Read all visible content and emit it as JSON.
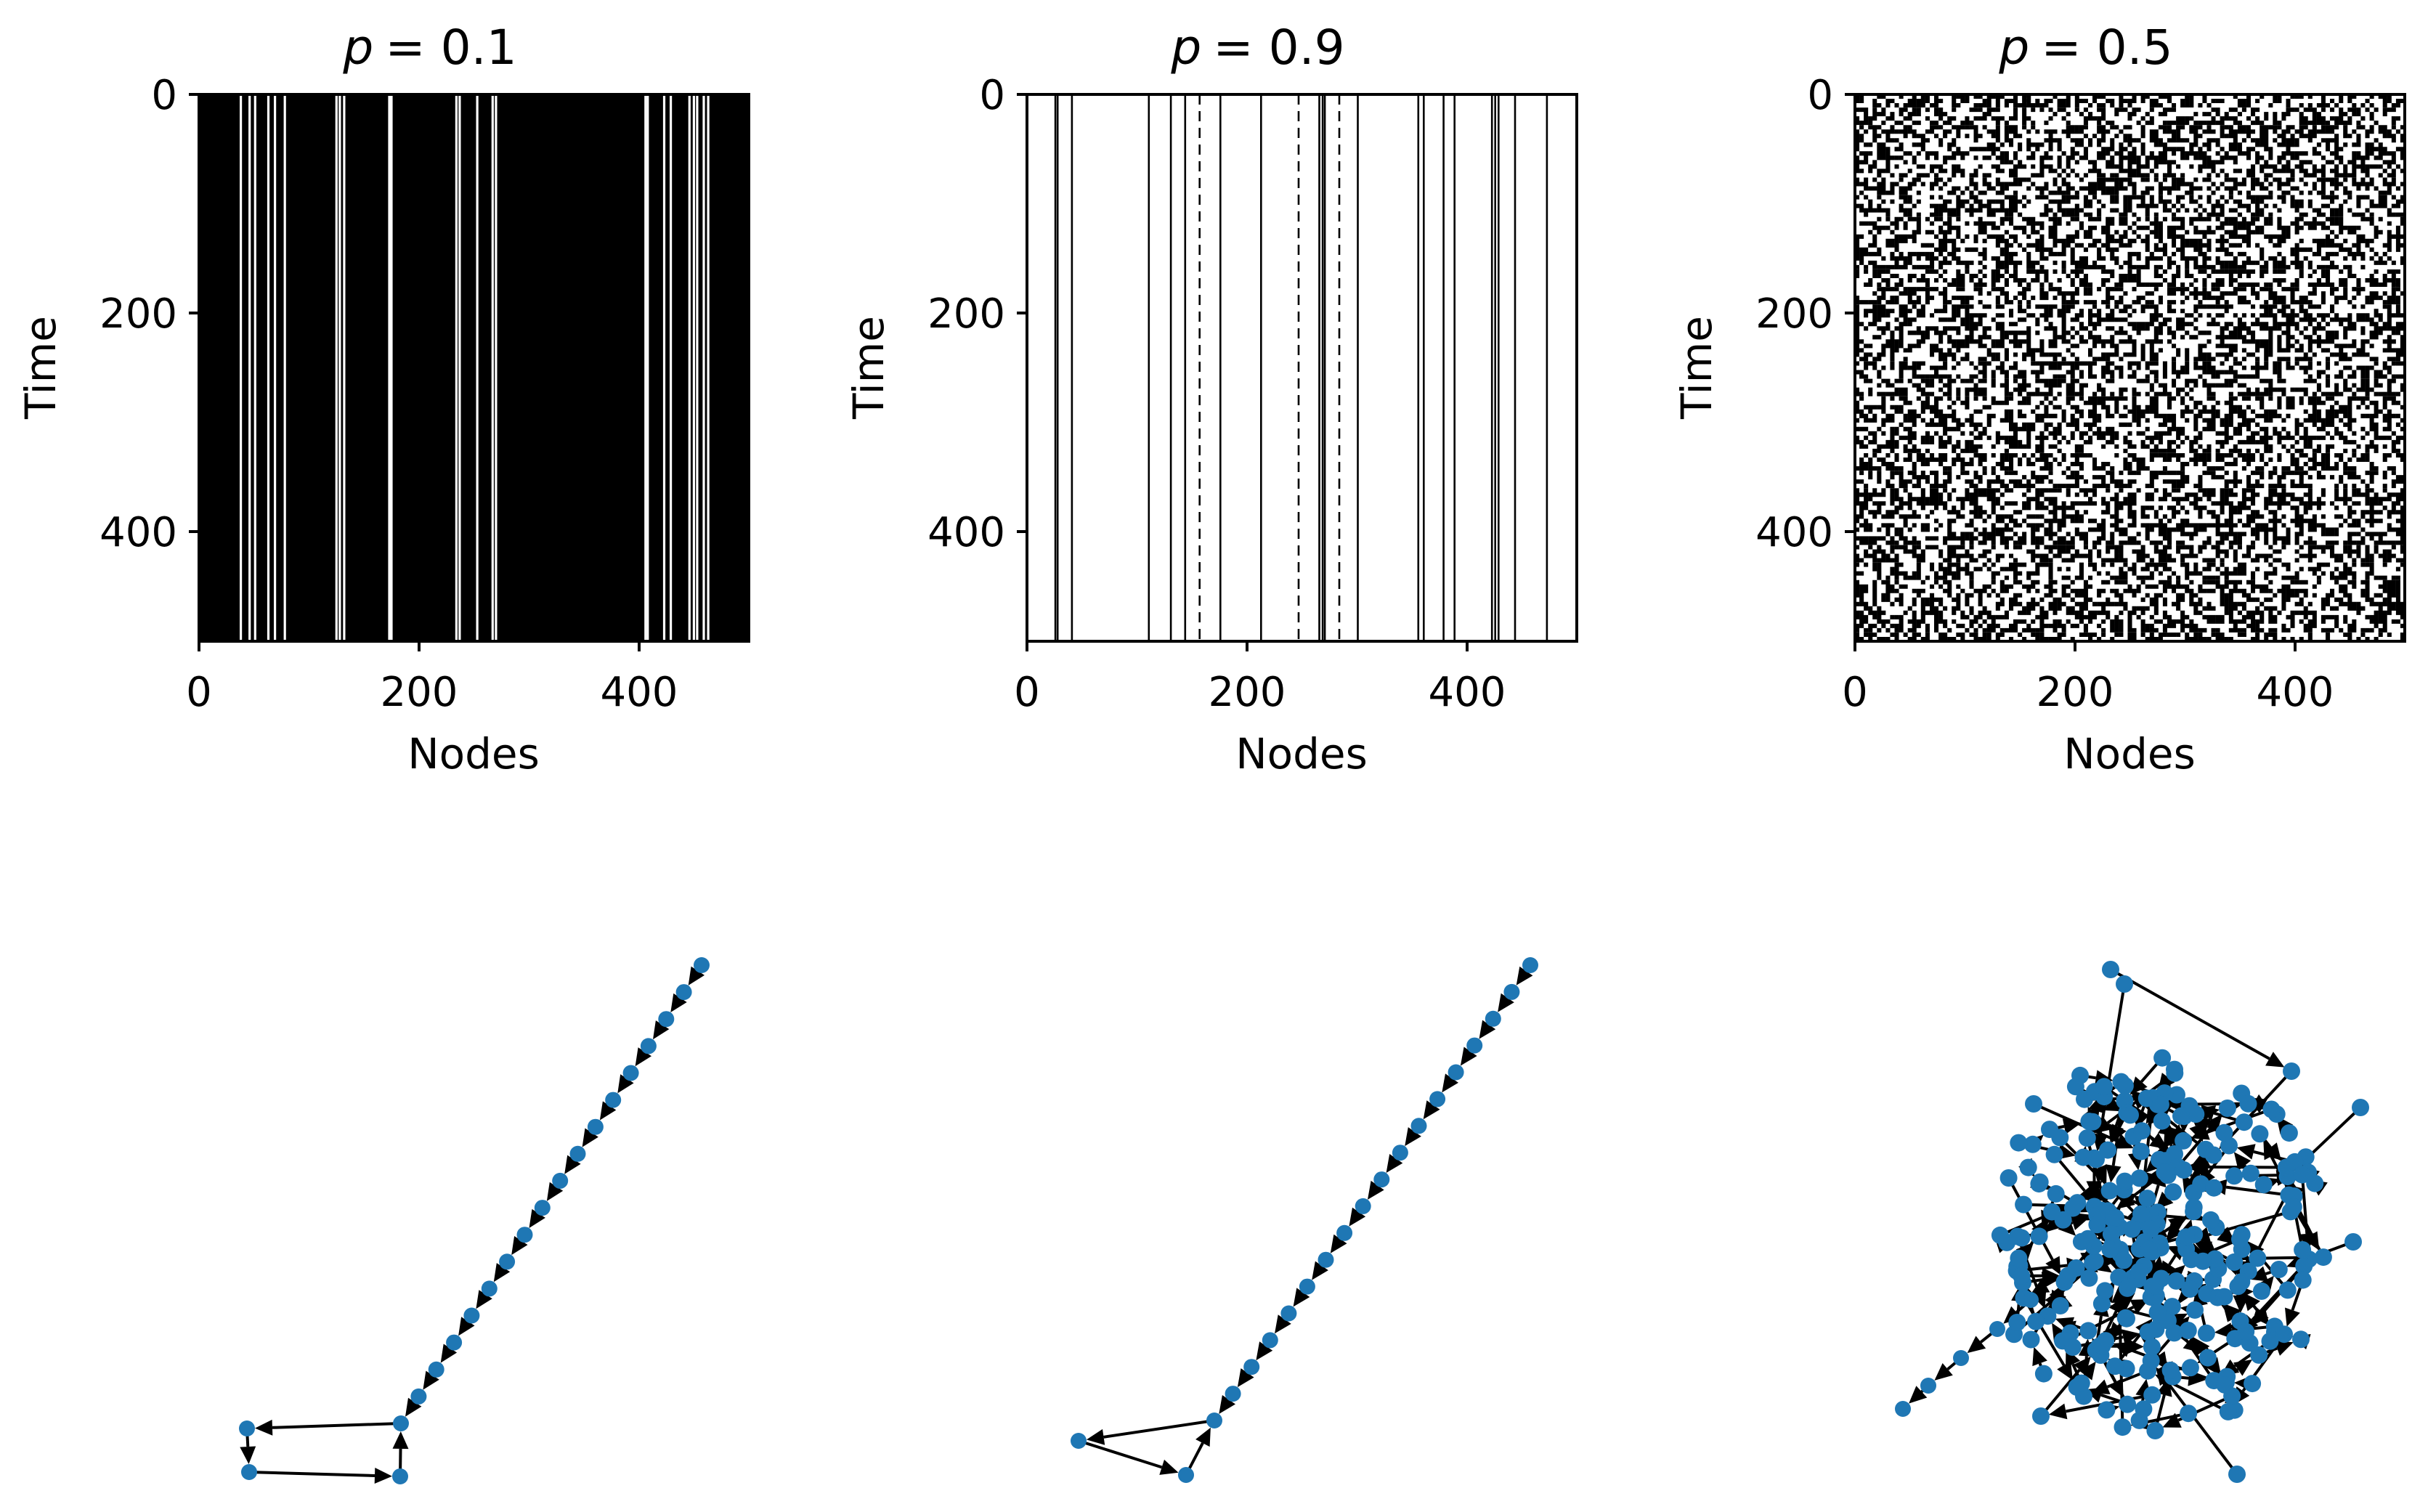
{
  "colors": {
    "heatmap_on": "#000000",
    "heatmap_off": "#ffffff",
    "node": "#1f77b4",
    "edge": "#000000"
  },
  "chart_data": [
    {
      "type": "heatmap",
      "title_prefix": "p",
      "title_value": "= 0.1",
      "xlabel": "Nodes",
      "ylabel": "Time",
      "xticks": [
        "0",
        "200",
        "400"
      ],
      "yticks": [
        "0",
        "200",
        "400"
      ],
      "xlim": [
        0,
        500
      ],
      "ylim": [
        500,
        0
      ],
      "p": 0.1,
      "cmap": "binary",
      "pattern": "mostly black, sparse constant white columns",
      "white_columns": [
        37,
        45,
        50,
        62,
        68,
        77,
        124,
        127,
        131,
        172,
        174,
        233,
        236,
        252,
        266,
        269,
        405,
        407,
        422,
        428,
        445,
        449,
        452,
        458,
        462
      ]
    },
    {
      "type": "heatmap",
      "title_prefix": "p",
      "title_value": "= 0.9",
      "xlabel": "Nodes",
      "ylabel": "Time",
      "xticks": [
        "0",
        "200",
        "400"
      ],
      "yticks": [
        "0",
        "200",
        "400"
      ],
      "xlim": [
        0,
        500
      ],
      "ylim": [
        500,
        0
      ],
      "p": 0.9,
      "cmap": "binary",
      "pattern": "mostly white, sparse constant black columns",
      "black_columns": [
        25,
        27,
        40,
        110,
        130,
        143,
        175,
        212,
        265,
        268,
        270,
        300,
        355,
        360,
        378,
        388,
        422,
        425,
        428,
        443,
        472
      ],
      "dashed_columns": [
        157,
        247,
        284
      ]
    },
    {
      "type": "heatmap",
      "title_prefix": "p",
      "title_value": "= 0.5",
      "xlabel": "Nodes",
      "ylabel": "Time",
      "xticks": [
        "0",
        "200",
        "400"
      ],
      "yticks": [
        "0",
        "200",
        "400"
      ],
      "xlim": [
        0,
        500
      ],
      "ylim": [
        500,
        0
      ],
      "p": 0.5,
      "cmap": "binary",
      "pattern": "random black and white noise"
    },
    {
      "type": "network",
      "layout": "long diagonal chain of nodes with arrows pointing toward a small loop at bottom-left",
      "chain_nodes": 18,
      "loop_nodes": 4
    },
    {
      "type": "network",
      "layout": "long diagonal chain of nodes with arrows pointing toward a small triangle loop at bottom-left",
      "chain_nodes": 18,
      "loop_nodes": 3
    },
    {
      "type": "network",
      "layout": "dense tangled cluster of nodes with a short tail toward the bottom-left"
    }
  ]
}
